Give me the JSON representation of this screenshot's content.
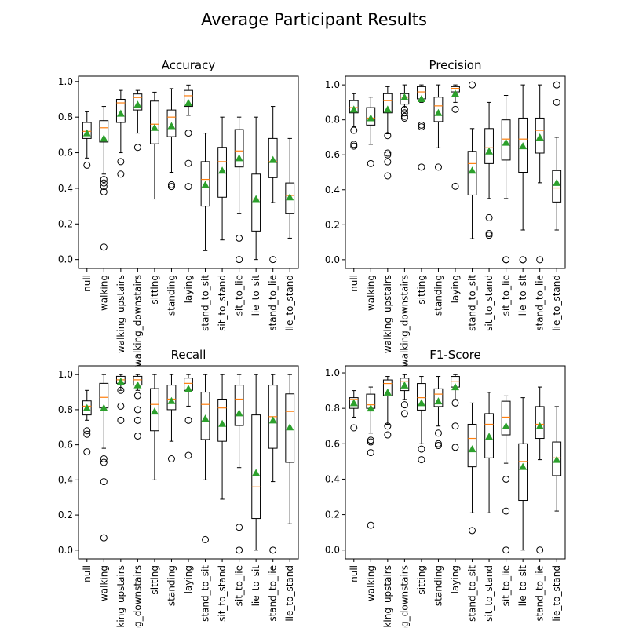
{
  "figure": {
    "title": "Average Participant Results"
  },
  "style": {
    "box_color": "#000000",
    "median_color": "#ff7f0e",
    "mean_color": "#2ca02c",
    "flier_color": "#000000"
  },
  "chart_data": [
    {
      "type": "box",
      "title": "Accuracy",
      "ylim": [
        -0.05,
        1.03
      ],
      "yticks": [
        "0.0",
        "0.2",
        "0.4",
        "0.6",
        "0.8",
        "1.0"
      ],
      "categories": [
        "null",
        "walking",
        "walking_upstairs",
        "walking_downstairs",
        "sitting",
        "standing",
        "laying",
        "stand_to_sit",
        "sit_to_stand",
        "sit_to_lie",
        "lie_to_sit",
        "stand_to_lie",
        "lie_to_stand"
      ],
      "boxes": [
        {
          "low": 0.57,
          "q1": 0.68,
          "med": 0.72,
          "q3": 0.77,
          "high": 0.83,
          "mean": 0.71,
          "fliers": [
            0.53
          ]
        },
        {
          "low": 0.48,
          "q1": 0.66,
          "med": 0.74,
          "q3": 0.78,
          "high": 0.86,
          "mean": 0.68,
          "fliers": [
            0.45,
            0.43,
            0.41,
            0.38,
            0.07
          ]
        },
        {
          "low": 0.6,
          "q1": 0.77,
          "med": 0.88,
          "q3": 0.9,
          "high": 0.95,
          "mean": 0.82,
          "fliers": [
            0.55,
            0.48
          ]
        },
        {
          "low": 0.71,
          "q1": 0.84,
          "med": 0.91,
          "q3": 0.93,
          "high": 0.95,
          "mean": 0.87,
          "fliers": [
            0.63
          ]
        },
        {
          "low": 0.34,
          "q1": 0.65,
          "med": 0.76,
          "q3": 0.89,
          "high": 0.94,
          "mean": 0.74,
          "fliers": []
        },
        {
          "low": 0.49,
          "q1": 0.69,
          "med": 0.8,
          "q3": 0.84,
          "high": 0.96,
          "mean": 0.75,
          "fliers": [
            0.42,
            0.41
          ]
        },
        {
          "low": 0.81,
          "q1": 0.86,
          "med": 0.92,
          "q3": 0.95,
          "high": 0.98,
          "mean": 0.88,
          "fliers": [
            0.71,
            0.54,
            0.41
          ]
        },
        {
          "low": 0.05,
          "q1": 0.3,
          "med": 0.45,
          "q3": 0.55,
          "high": 0.71,
          "mean": 0.42,
          "fliers": []
        },
        {
          "low": 0.11,
          "q1": 0.35,
          "med": 0.55,
          "q3": 0.63,
          "high": 0.8,
          "mean": 0.5,
          "fliers": []
        },
        {
          "low": 0.26,
          "q1": 0.52,
          "med": 0.61,
          "q3": 0.73,
          "high": 0.8,
          "mean": 0.57,
          "fliers": [
            0.12,
            0.0
          ]
        },
        {
          "low": 0.0,
          "q1": 0.16,
          "med": 0.34,
          "q3": 0.48,
          "high": 0.8,
          "mean": 0.34,
          "fliers": []
        },
        {
          "low": 0.32,
          "q1": 0.46,
          "med": 0.55,
          "q3": 0.68,
          "high": 0.86,
          "mean": 0.56,
          "fliers": [
            0.0
          ]
        },
        {
          "low": 0.12,
          "q1": 0.26,
          "med": 0.36,
          "q3": 0.43,
          "high": 0.68,
          "mean": 0.35,
          "fliers": []
        }
      ]
    },
    {
      "type": "box",
      "title": "Precision",
      "ylim": [
        -0.05,
        1.05
      ],
      "yticks": [
        "0.0",
        "0.2",
        "0.4",
        "0.6",
        "0.8",
        "1.0"
      ],
      "categories": [
        "null",
        "walking",
        "walking_upstairs",
        "walking_downstairs",
        "sitting",
        "standing",
        "laying",
        "stand_to_sit",
        "sit_to_stand",
        "sit_to_lie",
        "lie_to_sit",
        "stand_to_lie",
        "lie_to_stand"
      ],
      "boxes": [
        {
          "low": 0.76,
          "q1": 0.84,
          "med": 0.87,
          "q3": 0.91,
          "high": 0.95,
          "mean": 0.86,
          "fliers": [
            0.74,
            0.66,
            0.65
          ]
        },
        {
          "low": 0.66,
          "q1": 0.77,
          "med": 0.81,
          "q3": 0.87,
          "high": 0.93,
          "mean": 0.81,
          "fliers": [
            0.55
          ]
        },
        {
          "low": 0.72,
          "q1": 0.84,
          "med": 0.91,
          "q3": 0.95,
          "high": 0.99,
          "mean": 0.86,
          "fliers": [
            0.71,
            0.61,
            0.6,
            0.56,
            0.48
          ]
        },
        {
          "low": 0.87,
          "q1": 0.89,
          "med": 0.93,
          "q3": 0.95,
          "high": 1.0,
          "mean": 0.93,
          "fliers": [
            0.86,
            0.84,
            0.82,
            0.81
          ]
        },
        {
          "low": 0.9,
          "q1": 0.92,
          "med": 0.96,
          "q3": 0.99,
          "high": 1.0,
          "mean": 0.92,
          "fliers": [
            0.77,
            0.76,
            0.53
          ]
        },
        {
          "low": 0.64,
          "q1": 0.79,
          "med": 0.88,
          "q3": 0.93,
          "high": 1.0,
          "mean": 0.84,
          "fliers": [
            0.53
          ]
        },
        {
          "low": 0.9,
          "q1": 0.96,
          "med": 0.98,
          "q3": 0.99,
          "high": 1.0,
          "mean": 0.95,
          "fliers": [
            0.86,
            0.42
          ]
        },
        {
          "low": 0.12,
          "q1": 0.37,
          "med": 0.55,
          "q3": 0.62,
          "high": 0.75,
          "mean": 0.51,
          "fliers": [
            1.0
          ]
        },
        {
          "low": 0.35,
          "q1": 0.55,
          "med": 0.64,
          "q3": 0.75,
          "high": 0.9,
          "mean": 0.62,
          "fliers": [
            0.24,
            0.15,
            0.14
          ]
        },
        {
          "low": 0.35,
          "q1": 0.57,
          "med": 0.69,
          "q3": 0.8,
          "high": 0.94,
          "mean": 0.67,
          "fliers": [
            0.0,
            0.0
          ]
        },
        {
          "low": 0.17,
          "q1": 0.5,
          "med": 0.69,
          "q3": 0.81,
          "high": 1.0,
          "mean": 0.65,
          "fliers": [
            0.0,
            0.0
          ]
        },
        {
          "low": 0.44,
          "q1": 0.61,
          "med": 0.74,
          "q3": 0.81,
          "high": 1.0,
          "mean": 0.7,
          "fliers": [
            0.0
          ]
        },
        {
          "low": 0.17,
          "q1": 0.33,
          "med": 0.41,
          "q3": 0.51,
          "high": 0.7,
          "mean": 0.44,
          "fliers": [
            1.0,
            0.9
          ]
        }
      ]
    },
    {
      "type": "box",
      "title": "Recall",
      "ylim": [
        -0.05,
        1.05
      ],
      "yticks": [
        "0.0",
        "0.2",
        "0.4",
        "0.6",
        "0.8",
        "1.0"
      ],
      "categories": [
        "null",
        "walking",
        "walking_upstairs",
        "walking_downstairs",
        "sitting",
        "standing",
        "laying",
        "stand_to_sit",
        "sit_to_stand",
        "sit_to_lie",
        "lie_to_sit",
        "stand_to_lie",
        "lie_to_stand"
      ],
      "boxes": [
        {
          "low": 0.74,
          "q1": 0.77,
          "med": 0.82,
          "q3": 0.85,
          "high": 0.91,
          "mean": 0.81,
          "fliers": [
            0.68,
            0.66,
            0.56
          ]
        },
        {
          "low": 0.58,
          "q1": 0.81,
          "med": 0.87,
          "q3": 0.95,
          "high": 1.0,
          "mean": 0.81,
          "fliers": [
            0.52,
            0.5,
            0.39,
            0.07
          ]
        },
        {
          "low": 0.91,
          "q1": 0.95,
          "med": 0.97,
          "q3": 0.99,
          "high": 1.0,
          "mean": 0.96,
          "fliers": [
            0.91,
            0.82,
            0.74
          ]
        },
        {
          "low": 0.91,
          "q1": 0.94,
          "med": 0.97,
          "q3": 0.99,
          "high": 1.0,
          "mean": 0.94,
          "fliers": [
            0.88,
            0.8,
            0.74,
            0.65
          ]
        },
        {
          "low": 0.4,
          "q1": 0.68,
          "med": 0.83,
          "q3": 0.92,
          "high": 1.0,
          "mean": 0.79,
          "fliers": []
        },
        {
          "low": 0.62,
          "q1": 0.8,
          "med": 0.86,
          "q3": 0.94,
          "high": 1.0,
          "mean": 0.85,
          "fliers": [
            0.52
          ]
        },
        {
          "low": 0.82,
          "q1": 0.91,
          "med": 0.95,
          "q3": 0.98,
          "high": 1.0,
          "mean": 0.92,
          "fliers": [
            0.74,
            0.54
          ]
        },
        {
          "low": 0.4,
          "q1": 0.63,
          "med": 0.83,
          "q3": 0.9,
          "high": 1.0,
          "mean": 0.75,
          "fliers": [
            0.06
          ]
        },
        {
          "low": 0.29,
          "q1": 0.62,
          "med": 0.81,
          "q3": 0.86,
          "high": 1.0,
          "mean": 0.72,
          "fliers": []
        },
        {
          "low": 0.47,
          "q1": 0.71,
          "med": 0.86,
          "q3": 0.94,
          "high": 1.0,
          "mean": 0.78,
          "fliers": [
            0.13,
            0.0
          ]
        },
        {
          "low": 0.0,
          "q1": 0.18,
          "med": 0.36,
          "q3": 0.77,
          "high": 1.0,
          "mean": 0.44,
          "fliers": []
        },
        {
          "low": 0.39,
          "q1": 0.58,
          "med": 0.76,
          "q3": 0.94,
          "high": 1.0,
          "mean": 0.74,
          "fliers": [
            0.0
          ]
        },
        {
          "low": 0.15,
          "q1": 0.5,
          "med": 0.79,
          "q3": 0.89,
          "high": 1.0,
          "mean": 0.7,
          "fliers": []
        }
      ]
    },
    {
      "type": "box",
      "title": "F1-Score",
      "ylim": [
        -0.05,
        1.04
      ],
      "yticks": [
        "0.0",
        "0.2",
        "0.4",
        "0.6",
        "0.8",
        "1.0"
      ],
      "categories": [
        "null",
        "walking",
        "walking_upstairs",
        "walking_downstairs",
        "sitting",
        "standing",
        "laying",
        "stand_to_sit",
        "sit_to_stand",
        "sit_to_lie",
        "lie_to_sit",
        "stand_to_lie",
        "lie_to_stand"
      ],
      "boxes": [
        {
          "low": 0.75,
          "q1": 0.8,
          "med": 0.85,
          "q3": 0.86,
          "high": 0.9,
          "mean": 0.83,
          "fliers": [
            0.69
          ]
        },
        {
          "low": 0.66,
          "q1": 0.8,
          "med": 0.82,
          "q3": 0.88,
          "high": 0.92,
          "mean": 0.8,
          "fliers": [
            0.62,
            0.61,
            0.55,
            0.14
          ]
        },
        {
          "low": 0.71,
          "q1": 0.87,
          "med": 0.94,
          "q3": 0.96,
          "high": 0.98,
          "mean": 0.89,
          "fliers": [
            0.7,
            0.65
          ]
        },
        {
          "low": 0.85,
          "q1": 0.9,
          "med": 0.95,
          "q3": 0.97,
          "high": 0.99,
          "mean": 0.93,
          "fliers": [
            0.82,
            0.77
          ]
        },
        {
          "low": 0.6,
          "q1": 0.79,
          "med": 0.86,
          "q3": 0.94,
          "high": 0.98,
          "mean": 0.83,
          "fliers": [
            0.57,
            0.51
          ]
        },
        {
          "low": 0.7,
          "q1": 0.81,
          "med": 0.88,
          "q3": 0.91,
          "high": 0.98,
          "mean": 0.84,
          "fliers": [
            0.66,
            0.6,
            0.59
          ]
        },
        {
          "low": 0.85,
          "q1": 0.92,
          "med": 0.95,
          "q3": 0.98,
          "high": 0.99,
          "mean": 0.92,
          "fliers": [
            0.83,
            0.7,
            0.58
          ]
        },
        {
          "low": 0.21,
          "q1": 0.47,
          "med": 0.63,
          "q3": 0.71,
          "high": 0.83,
          "mean": 0.57,
          "fliers": [
            0.11
          ]
        },
        {
          "low": 0.21,
          "q1": 0.52,
          "med": 0.71,
          "q3": 0.77,
          "high": 0.89,
          "mean": 0.64,
          "fliers": []
        },
        {
          "low": 0.49,
          "q1": 0.65,
          "med": 0.75,
          "q3": 0.84,
          "high": 0.87,
          "mean": 0.7,
          "fliers": [
            0.4,
            0.22,
            0.0
          ]
        },
        {
          "low": 0.0,
          "q1": 0.28,
          "med": 0.5,
          "q3": 0.6,
          "high": 0.86,
          "mean": 0.47,
          "fliers": []
        },
        {
          "low": 0.51,
          "q1": 0.63,
          "med": 0.71,
          "q3": 0.81,
          "high": 0.92,
          "mean": 0.7,
          "fliers": [
            0.0
          ]
        },
        {
          "low": 0.22,
          "q1": 0.42,
          "med": 0.52,
          "q3": 0.61,
          "high": 0.81,
          "mean": 0.51,
          "fliers": []
        }
      ]
    }
  ]
}
